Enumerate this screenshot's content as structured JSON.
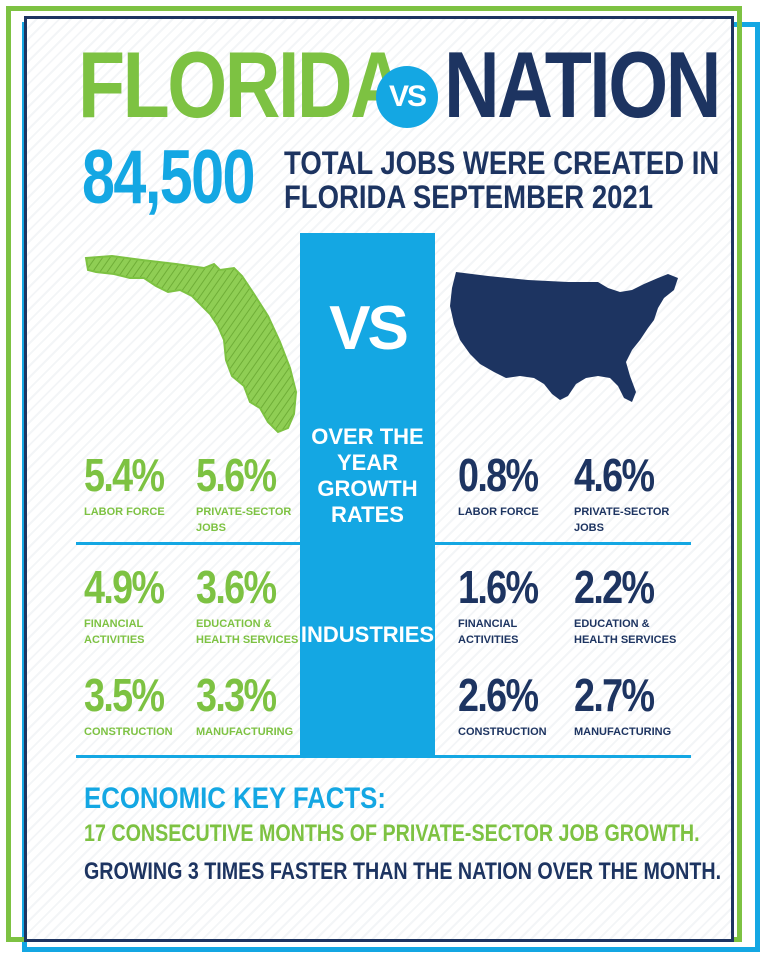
{
  "header": {
    "left": "FLORIDA",
    "vs": "VS",
    "right": "NATION"
  },
  "headline": {
    "number": "84,500",
    "text_line1": "TOTAL JOBS WERE CREATED IN",
    "text_line2": "FLORIDA SEPTEMBER 2021"
  },
  "center": {
    "vs": "VS",
    "growth_line1": "OVER THE",
    "growth_line2": "YEAR",
    "growth_line3": "GROWTH",
    "growth_line4": "RATES",
    "industries": "INDUSTRIES"
  },
  "florida": {
    "labor_force": {
      "value": "5.4%",
      "label": "LABOR FORCE"
    },
    "private_sector": {
      "value": "5.6%",
      "label_line1": "PRIVATE-SECTOR",
      "label_line2": "JOBS"
    },
    "financial": {
      "value": "4.9%",
      "label_line1": "FINANCIAL",
      "label_line2": "ACTIVITIES"
    },
    "education": {
      "value": "3.6%",
      "label_line1": "EDUCATION &",
      "label_line2": "HEALTH SERVICES"
    },
    "construction": {
      "value": "3.5%",
      "label": "CONSTRUCTION"
    },
    "manufacturing": {
      "value": "3.3%",
      "label": "MANUFACTURING"
    }
  },
  "nation": {
    "labor_force": {
      "value": "0.8%",
      "label": "LABOR FORCE"
    },
    "private_sector": {
      "value": "4.6%",
      "label_line1": "PRIVATE-SECTOR",
      "label_line2": "JOBS"
    },
    "financial": {
      "value": "1.6%",
      "label_line1": "FINANCIAL",
      "label_line2": "ACTIVITIES"
    },
    "education": {
      "value": "2.2%",
      "label_line1": "EDUCATION &",
      "label_line2": "HEALTH SERVICES"
    },
    "construction": {
      "value": "2.6%",
      "label": "CONSTRUCTION"
    },
    "manufacturing": {
      "value": "2.7%",
      "label": "MANUFACTURING"
    }
  },
  "facts": {
    "title": "ECONOMIC KEY FACTS:",
    "line1": "17 CONSECUTIVE MONTHS OF PRIVATE-SECTOR JOB GROWTH.",
    "line2": "GROWING 3 TIMES FASTER THAN THE NATION OVER THE MONTH."
  },
  "colors": {
    "green": "#7dc242",
    "blue": "#14a7e3",
    "navy": "#1d3461"
  },
  "icons": {
    "florida_map": "florida-map-icon",
    "usa_map": "usa-map-icon"
  }
}
